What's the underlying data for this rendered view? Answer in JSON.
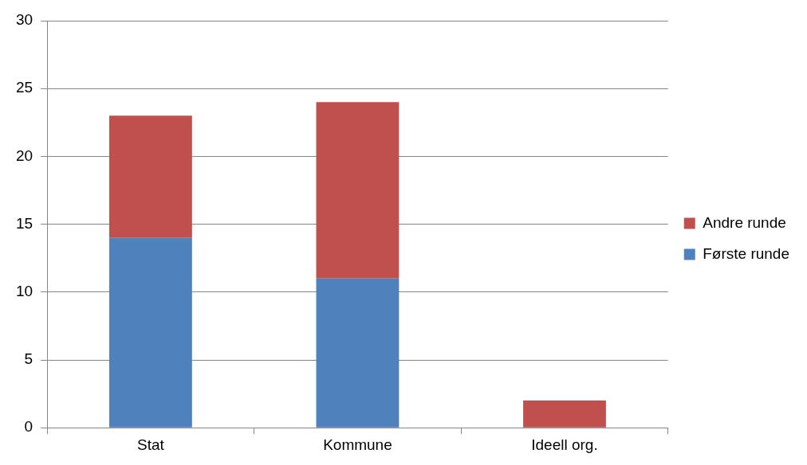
{
  "chart_data": {
    "type": "bar",
    "stacked": true,
    "categories": [
      "Stat",
      "Kommune",
      "Ideell org."
    ],
    "series": [
      {
        "name": "Første runde",
        "color": "#4f81bd",
        "values": [
          14,
          11,
          0
        ]
      },
      {
        "name": "Andre runde",
        "color": "#c0504d",
        "values": [
          9,
          13,
          2
        ]
      }
    ],
    "ylim": [
      0,
      30
    ],
    "yticks": [
      0,
      5,
      10,
      15,
      20,
      25,
      30
    ],
    "grid": "y",
    "legend": "right"
  }
}
